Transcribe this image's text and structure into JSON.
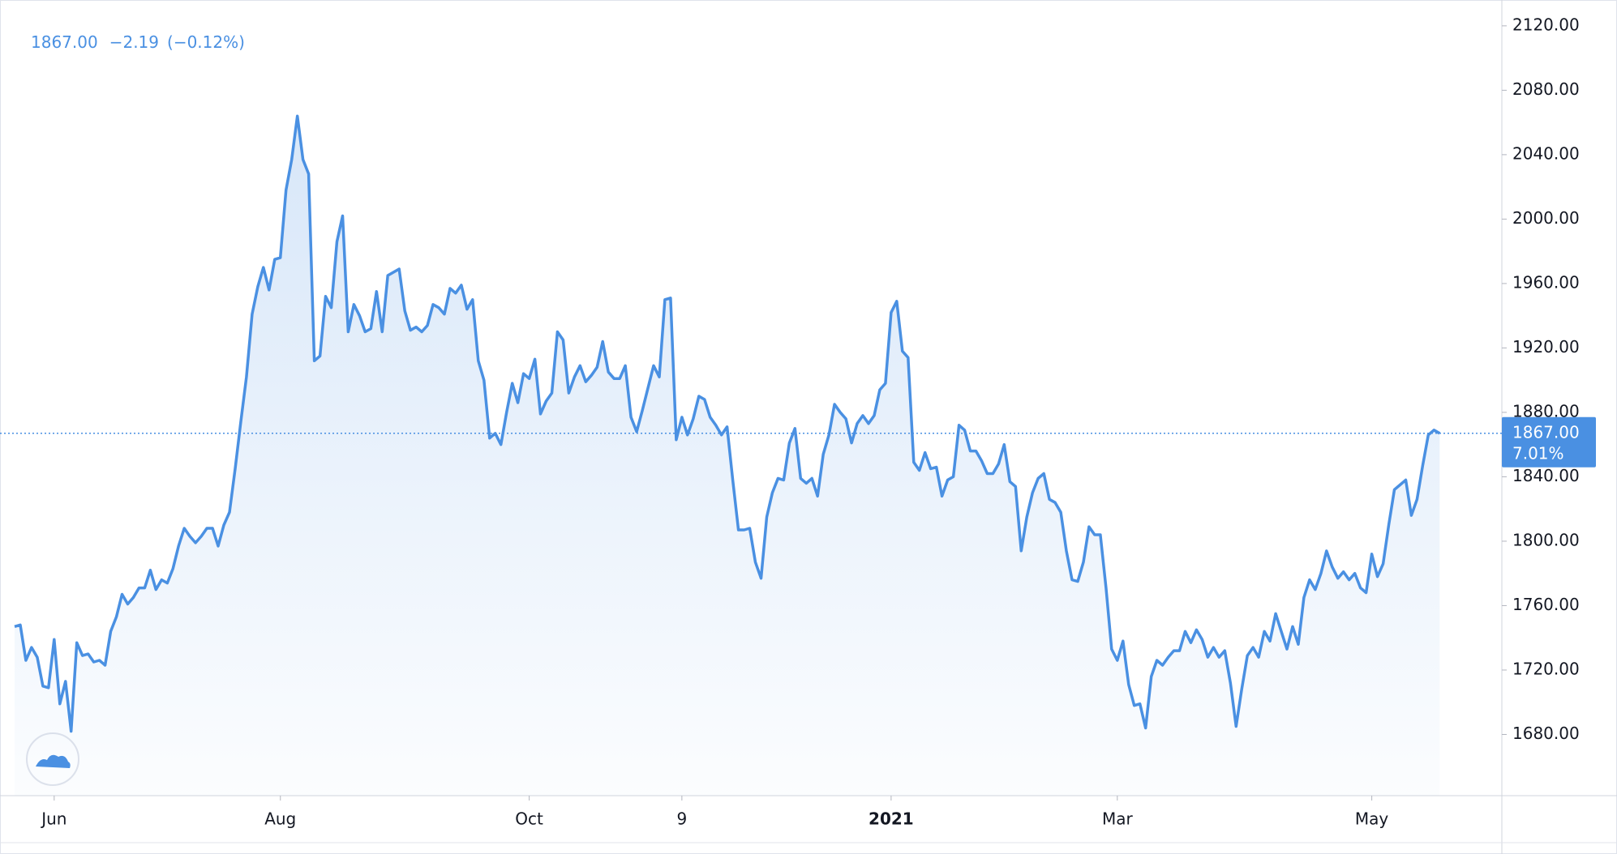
{
  "chart_data": {
    "type": "area",
    "legend": {
      "price": "1867.00",
      "change": "−2.19",
      "change_pct": "(−0.12%)"
    },
    "color": "#4a90e2",
    "price_line": {
      "value": 1867,
      "label": "1867.00",
      "pct_label": "7.01%"
    },
    "xlim": [
      0,
      263
    ],
    "xticks": [
      {
        "value": 7,
        "label": "Jun"
      },
      {
        "value": 47,
        "label": "Aug"
      },
      {
        "value": 91,
        "label": "Oct"
      },
      {
        "value": 118,
        "label": "9"
      },
      {
        "value": 155,
        "label": "2021"
      },
      {
        "value": 195,
        "label": "Mar"
      },
      {
        "value": 240,
        "label": "May"
      }
    ],
    "ylim": [
      1642,
      2130
    ],
    "yticks": [
      {
        "value": 1680,
        "label": "1680.00"
      },
      {
        "value": 1720,
        "label": "1720.00"
      },
      {
        "value": 1760,
        "label": "1760.00"
      },
      {
        "value": 1800,
        "label": "1800.00"
      },
      {
        "value": 1840,
        "label": "1840.00"
      },
      {
        "value": 1880,
        "label": "1880.00"
      },
      {
        "value": 1920,
        "label": "1920.00"
      },
      {
        "value": 1960,
        "label": "1960.00"
      },
      {
        "value": 2000,
        "label": "2000.00"
      },
      {
        "value": 2040,
        "label": "2040.00"
      },
      {
        "value": 2080,
        "label": "2080.00"
      },
      {
        "value": 2120,
        "label": "2120.00"
      }
    ],
    "values": [
      1747,
      1748,
      1726,
      1734,
      1728,
      1710,
      1709,
      1739,
      1699,
      1713,
      1682,
      1737,
      1729,
      1730,
      1725,
      1726,
      1723,
      1744,
      1753,
      1767,
      1761,
      1765,
      1771,
      1771,
      1782,
      1770,
      1776,
      1774,
      1783,
      1797,
      1808,
      1803,
      1799,
      1803,
      1808,
      1808,
      1797,
      1810,
      1818,
      1845,
      1874,
      1902,
      1941,
      1958,
      1970,
      1956,
      1975,
      1976,
      2018,
      2037,
      2064,
      2037,
      2028,
      1912,
      1915,
      1952,
      1945,
      1986,
      2002,
      1930,
      1947,
      1940,
      1930,
      1932,
      1955,
      1930,
      1965,
      1967,
      1969,
      1943,
      1931,
      1933,
      1930,
      1934,
      1947,
      1945,
      1941,
      1957,
      1954,
      1959,
      1944,
      1950,
      1912,
      1900,
      1864,
      1867,
      1860,
      1880,
      1898,
      1886,
      1904,
      1901,
      1913,
      1879,
      1887,
      1892,
      1930,
      1925,
      1892,
      1902,
      1909,
      1899,
      1903,
      1908,
      1924,
      1905,
      1901,
      1901,
      1909,
      1877,
      1868,
      1881,
      1895,
      1909,
      1902,
      1950,
      1951,
      1863,
      1877,
      1866,
      1876,
      1890,
      1888,
      1877,
      1872,
      1866,
      1871,
      1838,
      1807,
      1807,
      1808,
      1787,
      1777,
      1815,
      1830,
      1839,
      1838,
      1861,
      1870,
      1839,
      1836,
      1839,
      1828,
      1854,
      1866,
      1885,
      1880,
      1876,
      1861,
      1873,
      1878,
      1873,
      1878,
      1894,
      1898,
      1942,
      1949,
      1918,
      1914,
      1849,
      1844,
      1855,
      1845,
      1846,
      1828,
      1838,
      1840,
      1872,
      1869,
      1856,
      1856,
      1850,
      1842,
      1842,
      1848,
      1860,
      1837,
      1834,
      1794,
      1815,
      1830,
      1839,
      1842,
      1826,
      1824,
      1818,
      1794,
      1776,
      1775,
      1787,
      1809,
      1804,
      1804,
      1771,
      1733,
      1726,
      1738,
      1711,
      1698,
      1699,
      1684,
      1716,
      1726,
      1723,
      1728,
      1732,
      1732,
      1744,
      1737,
      1745,
      1739,
      1728,
      1734,
      1728,
      1732,
      1712,
      1685,
      1708,
      1729,
      1734,
      1728,
      1744,
      1738,
      1755,
      1744,
      1733,
      1747,
      1736,
      1765,
      1776,
      1770,
      1780,
      1794,
      1784,
      1777,
      1781,
      1776,
      1780,
      1771,
      1768,
      1792,
      1778,
      1786,
      1810,
      1832,
      1835,
      1838,
      1816,
      1826,
      1847,
      1866,
      1869,
      1867
    ]
  }
}
